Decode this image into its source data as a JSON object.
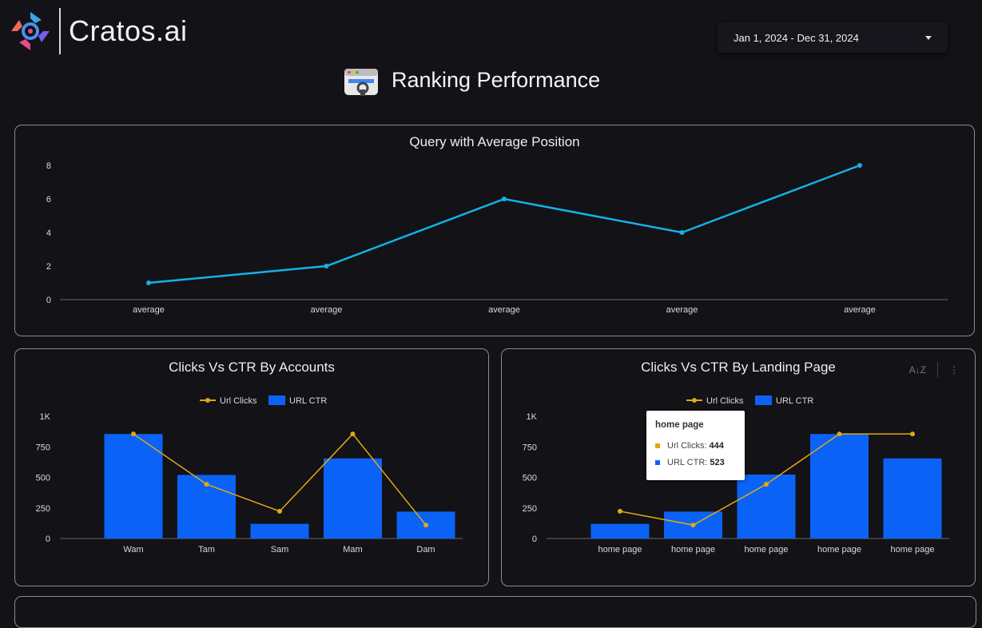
{
  "header": {
    "logo_text": "Cratos.ai",
    "date_range": "Jan 1, 2024 - Dec 31, 2024",
    "page_title": "Ranking Performance"
  },
  "colors": {
    "line_cyan": "#12b3ea",
    "bar_blue": "#0a63f6",
    "clicks_line": "#e2a80f",
    "background": "#121217"
  },
  "chart_data": [
    {
      "type": "line",
      "title": "Query with Average Position",
      "categories": [
        "average",
        "average",
        "average",
        "average",
        "average"
      ],
      "values": [
        1,
        2,
        6,
        4,
        8
      ],
      "y_ticks": [
        "0",
        "2",
        "4",
        "6",
        "8"
      ],
      "ylim": [
        0,
        8
      ]
    },
    {
      "type": "bar",
      "title": "Clicks Vs CTR By Accounts",
      "categories": [
        "Wam",
        "Tam",
        "Sam",
        "Mam",
        "Dam"
      ],
      "series": [
        {
          "name": "URL CTR",
          "kind": "bar",
          "values": [
            855,
            520,
            120,
            655,
            220
          ]
        },
        {
          "name": "Url Clicks",
          "kind": "line",
          "values": [
            855,
            444,
            223,
            855,
            110
          ]
        }
      ],
      "y_ticks": [
        "0",
        "250",
        "500",
        "750",
        "1K"
      ],
      "ylim": [
        0,
        1000
      ]
    },
    {
      "type": "bar",
      "title": "Clicks Vs CTR By Landing Page",
      "categories": [
        "home page",
        "home page",
        "home page",
        "home page",
        "home page"
      ],
      "series": [
        {
          "name": "URL CTR",
          "kind": "bar",
          "values": [
            120,
            220,
            523,
            855,
            655
          ]
        },
        {
          "name": "Url Clicks",
          "kind": "line",
          "values": [
            223,
            110,
            444,
            855,
            855
          ]
        }
      ],
      "y_ticks": [
        "0",
        "250",
        "500",
        "750",
        "1K"
      ],
      "ylim": [
        0,
        1000
      ],
      "tooltip": {
        "title": "home page",
        "rows": [
          {
            "label": "Url Clicks:",
            "value": "444"
          },
          {
            "label": "URL CTR:",
            "value": "523"
          }
        ]
      }
    }
  ]
}
